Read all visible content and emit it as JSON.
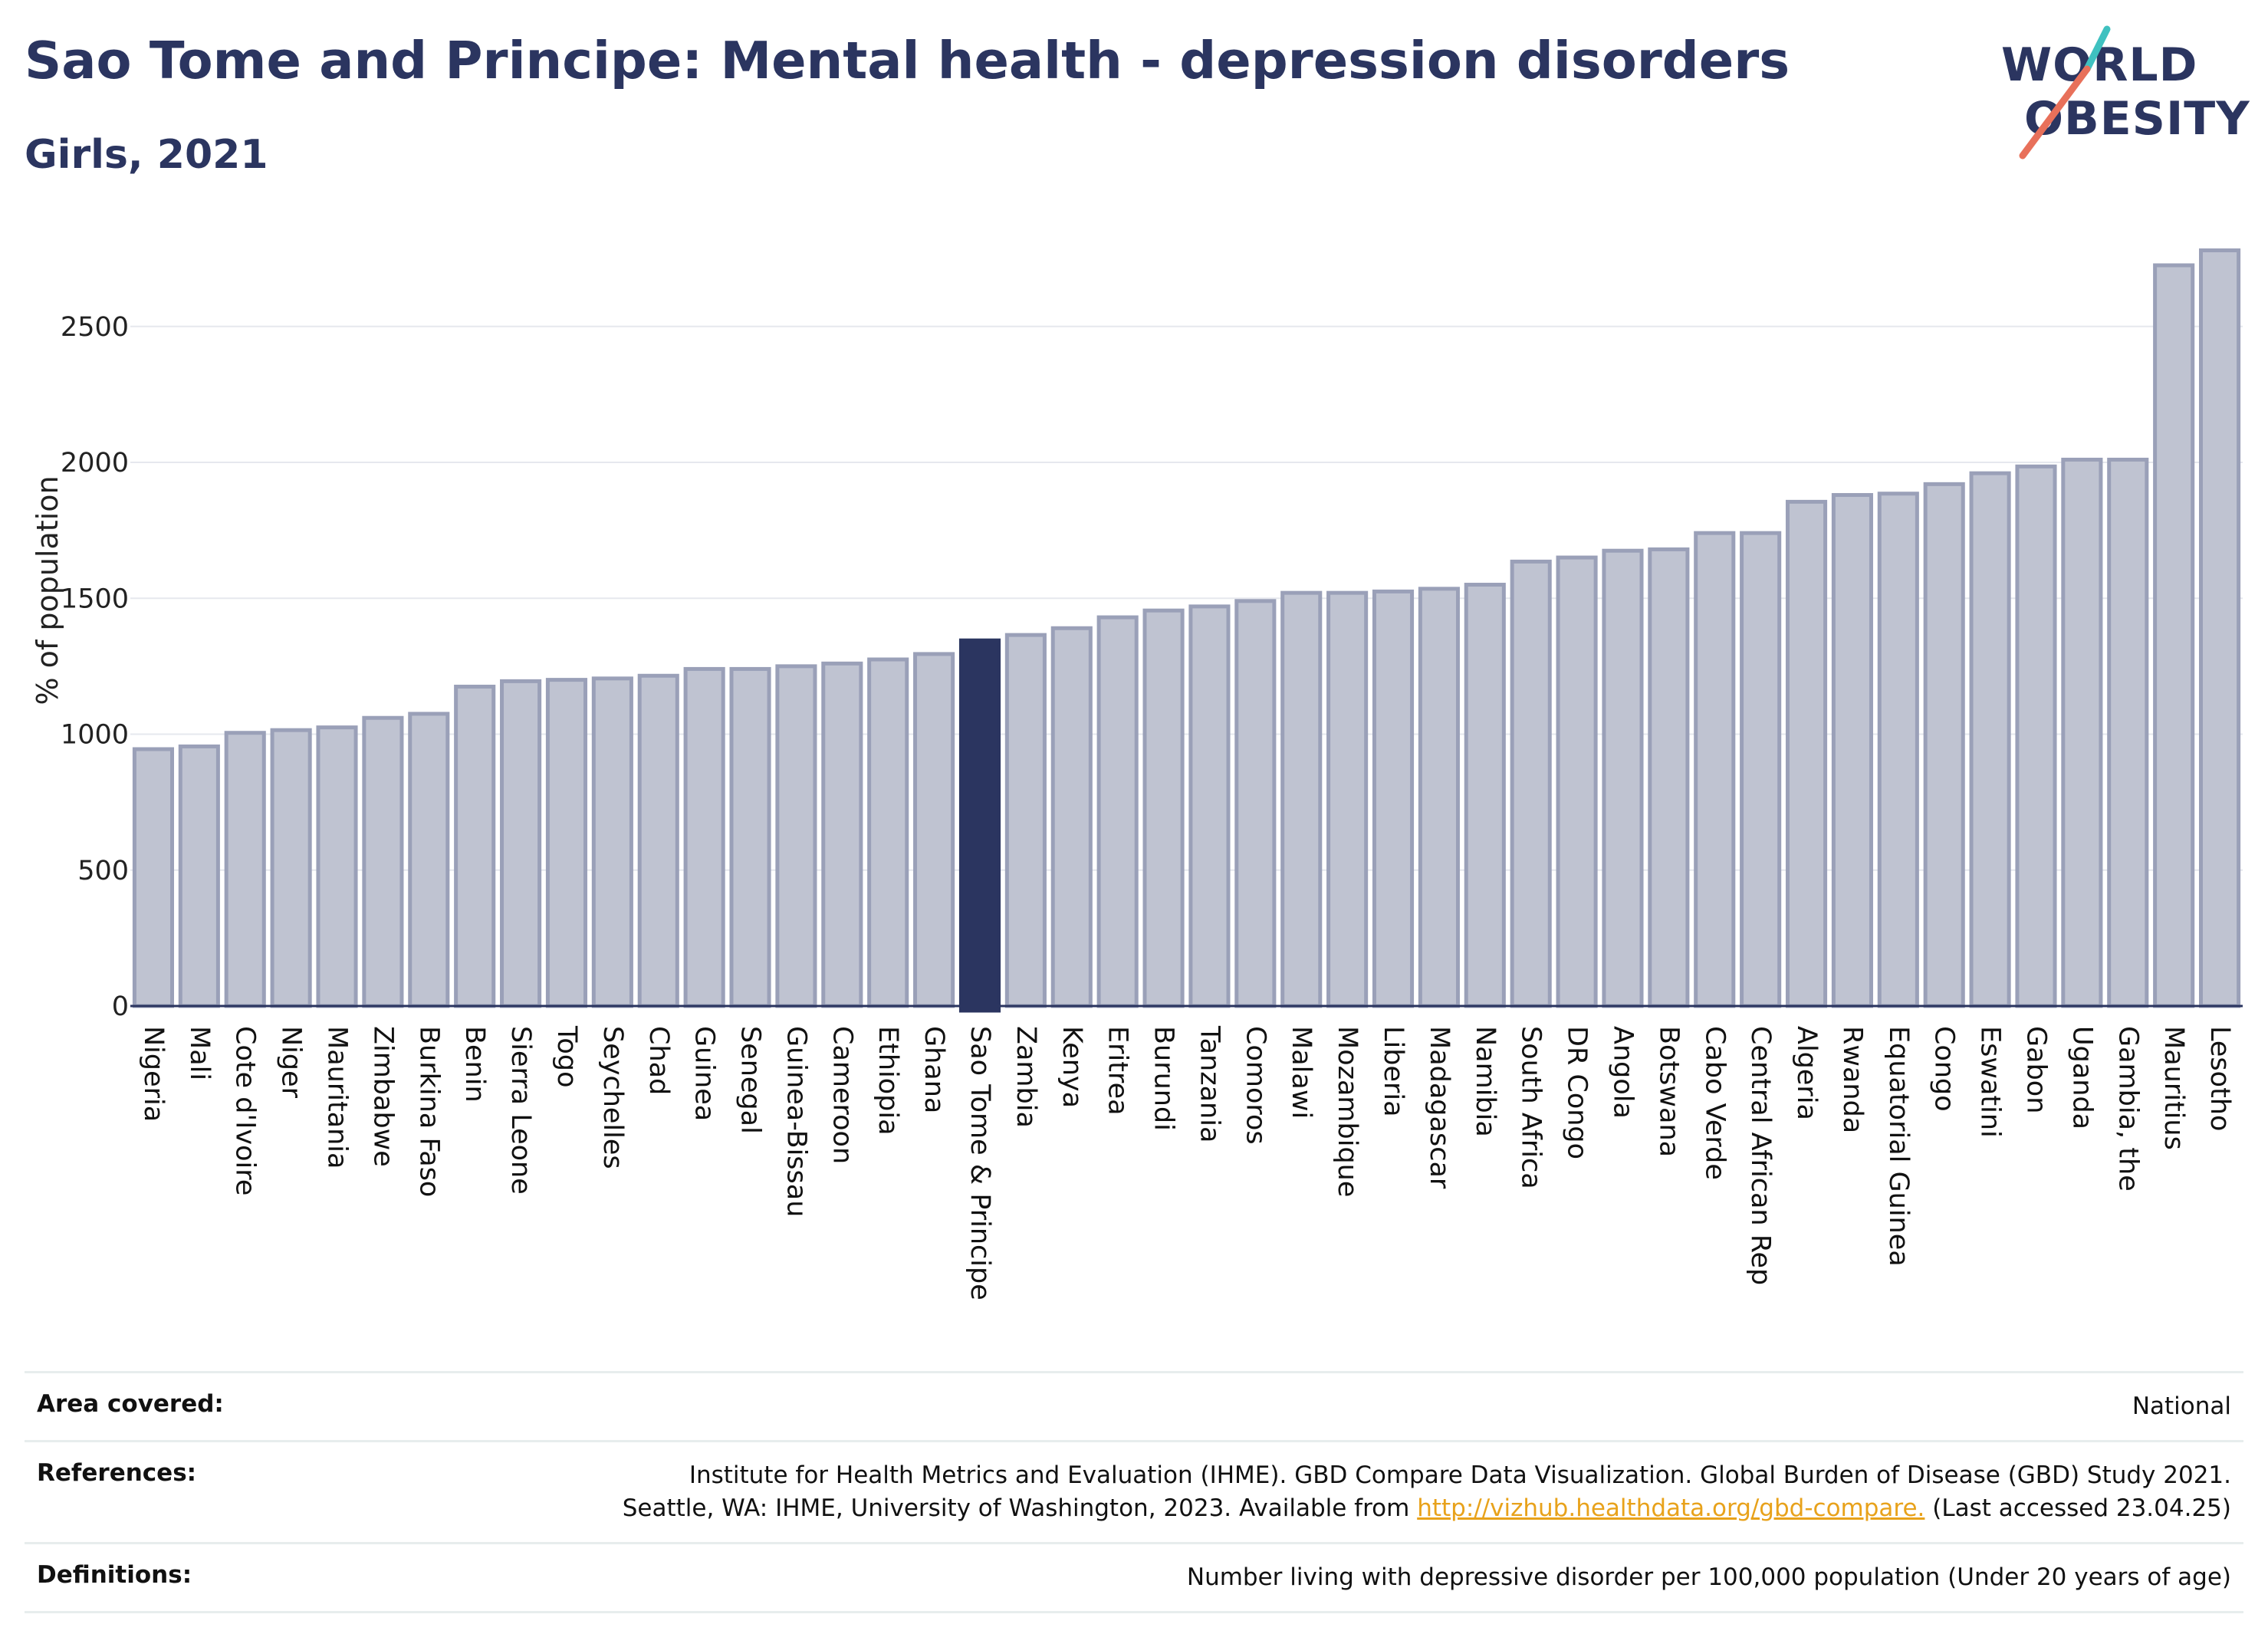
{
  "header": {
    "title": "Sao Tome and Principe: Mental health - depression disorders",
    "subtitle": "Girls, 2021"
  },
  "logo": {
    "line1": "WORLD",
    "line2": "OBESITY"
  },
  "colors": {
    "highlight": "#2b3560",
    "bar": "#bfc3d1",
    "bar_edge": "#9aa0b8",
    "accent_teal": "#3fc1c0",
    "accent_coral": "#e8705a"
  },
  "chart_data": {
    "type": "bar",
    "title": "Sao Tome and Principe: Mental health - depression disorders",
    "subtitle": "Girls, 2021",
    "ylabel": "% of population",
    "xlabel": "",
    "ylim": [
      0,
      2800
    ],
    "yticks": [
      0,
      500,
      1000,
      1500,
      2000,
      2500
    ],
    "grid": true,
    "highlight": "Sao Tome & Principe",
    "categories": [
      "Nigeria",
      "Mali",
      "Cote d'Ivoire",
      "Niger",
      "Mauritania",
      "Zimbabwe",
      "Burkina Faso",
      "Benin",
      "Sierra Leone",
      "Togo",
      "Seychelles",
      "Chad",
      "Guinea",
      "Senegal",
      "Guinea-Bissau",
      "Cameroon",
      "Ethiopia",
      "Ghana",
      "Sao Tome & Principe",
      "Zambia",
      "Kenya",
      "Eritrea",
      "Burundi",
      "Tanzania",
      "Comoros",
      "Malawi",
      "Mozambique",
      "Liberia",
      "Madagascar",
      "Namibia",
      "South Africa",
      "DR Congo",
      "Angola",
      "Botswana",
      "Cabo Verde",
      "Central African Rep",
      "Algeria",
      "Rwanda",
      "Equatorial Guinea",
      "Congo",
      "Eswatini",
      "Gabon",
      "Uganda",
      "Gambia, the",
      "Mauritius",
      "Lesotho"
    ],
    "values": [
      945,
      955,
      1005,
      1015,
      1025,
      1060,
      1075,
      1175,
      1195,
      1200,
      1205,
      1215,
      1240,
      1240,
      1250,
      1260,
      1275,
      1295,
      1345,
      1365,
      1390,
      1430,
      1455,
      1470,
      1490,
      1520,
      1520,
      1525,
      1535,
      1550,
      1635,
      1650,
      1675,
      1680,
      1740,
      1740,
      1855,
      1880,
      1885,
      1920,
      1960,
      1985,
      2010,
      2010,
      2725,
      2780
    ]
  },
  "footer": {
    "area_label": "Area covered:",
    "area_value": "National",
    "references_label": "References:",
    "references_line1": "Institute for Health Metrics and Evaluation (IHME). GBD Compare Data Visualization. Global Burden of Disease (GBD) Study 2021.",
    "references_line2_pre": "Seattle, WA: IHME, University of Washington, 2023. Available from ",
    "references_link": "http://vizhub.healthdata.org/gbd-compare.",
    "references_line2_post": " (Last accessed 23.04.25)",
    "definitions_label": "Definitions:",
    "definitions_value": "Number living with depressive disorder per 100,000 population (Under 20 years of age)"
  }
}
